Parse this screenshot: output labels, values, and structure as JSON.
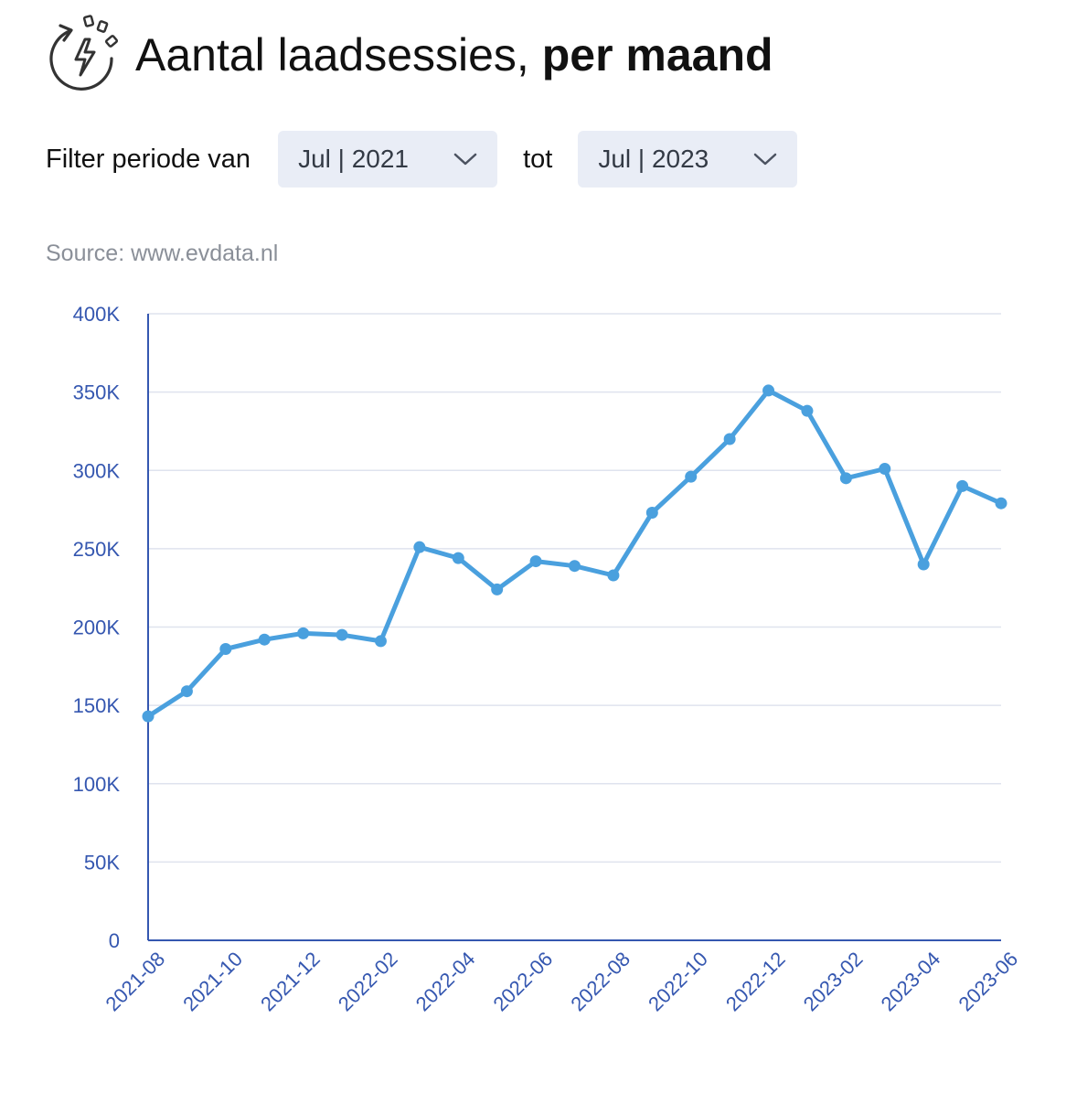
{
  "header": {
    "icon": "lightning-refresh-icon",
    "title_regular": "Aantal laadsessies,",
    "title_bold": "per maand"
  },
  "filter": {
    "label": "Filter periode van",
    "from_value": "Jul | 2021",
    "to_label": "tot",
    "to_value": "Jul | 2023"
  },
  "source": "Source: www.evdata.nl",
  "colors": {
    "line": "#4aa0de",
    "axis": "#3557b0",
    "grid": "#dfe3ee",
    "select_bg": "#e9edf6"
  },
  "chart_data": {
    "type": "line",
    "x": [
      "2021-08",
      "2021-09",
      "2021-10",
      "2021-11",
      "2021-12",
      "2022-01",
      "2022-02",
      "2022-03",
      "2022-04",
      "2022-05",
      "2022-06",
      "2022-07",
      "2022-08",
      "2022-09",
      "2022-10",
      "2022-11",
      "2022-12",
      "2023-01",
      "2023-02",
      "2023-03",
      "2023-04",
      "2023-05",
      "2023-06"
    ],
    "values": [
      143000,
      159000,
      186000,
      192000,
      196000,
      195000,
      191000,
      251000,
      244000,
      224000,
      242000,
      239000,
      233000,
      273000,
      296000,
      320000,
      351000,
      338000,
      295000,
      301000,
      240000,
      290000,
      279000
    ],
    "x_tick_labels": [
      "2021-08",
      "2021-10",
      "2021-12",
      "2022-02",
      "2022-04",
      "2022-06",
      "2022-08",
      "2022-10",
      "2022-12",
      "2023-02",
      "2023-04",
      "2023-06"
    ],
    "y_tick_labels": [
      "0",
      "50K",
      "100K",
      "150K",
      "200K",
      "250K",
      "300K",
      "350K",
      "400K"
    ],
    "ylim": [
      0,
      400000
    ],
    "grid": true,
    "legend": "none"
  }
}
